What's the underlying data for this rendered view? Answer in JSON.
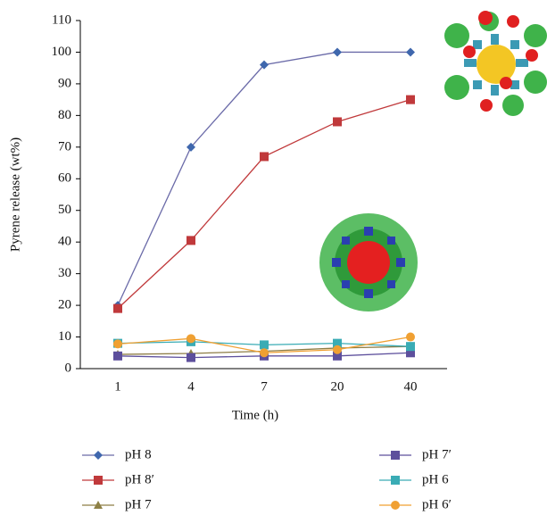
{
  "chart_data": {
    "type": "line",
    "xlabel": "Time (h)",
    "ylabel": "Pyrene release (wt%)",
    "categories": [
      "1",
      "4",
      "7",
      "20",
      "40"
    ],
    "ylim": [
      0,
      110
    ],
    "yticks": [
      0,
      10,
      20,
      30,
      40,
      50,
      60,
      70,
      80,
      90,
      100,
      110
    ],
    "series": [
      {
        "name": "pH 8",
        "color": "#3f67ad",
        "line_color": "#6a6aa8",
        "marker": "diamond",
        "values": [
          20,
          70,
          96,
          100,
          100
        ]
      },
      {
        "name": "pH 8′",
        "color": "#c0393b",
        "line_color": "#c0393b",
        "marker": "square",
        "values": [
          19,
          40.5,
          67,
          78,
          85
        ]
      },
      {
        "name": "pH 7",
        "color": "#8d8045",
        "line_color": "#8d7d45",
        "marker": "triangle",
        "values": [
          4.5,
          4.8,
          5.5,
          6.5,
          7
        ]
      },
      {
        "name": "pH 7′",
        "color": "#5d4f9c",
        "line_color": "#5d4f9c",
        "marker": "square",
        "values": [
          4,
          3.5,
          4,
          4,
          5
        ]
      },
      {
        "name": "pH 6",
        "color": "#3aacb5",
        "line_color": "#3aacb5",
        "marker": "square",
        "values": [
          8,
          8.5,
          7.5,
          8,
          7
        ]
      },
      {
        "name": "pH 6′",
        "color": "#f0a032",
        "line_color": "#f0a032",
        "marker": "circle",
        "values": [
          7.8,
          9.5,
          5,
          6,
          10
        ]
      }
    ]
  }
}
